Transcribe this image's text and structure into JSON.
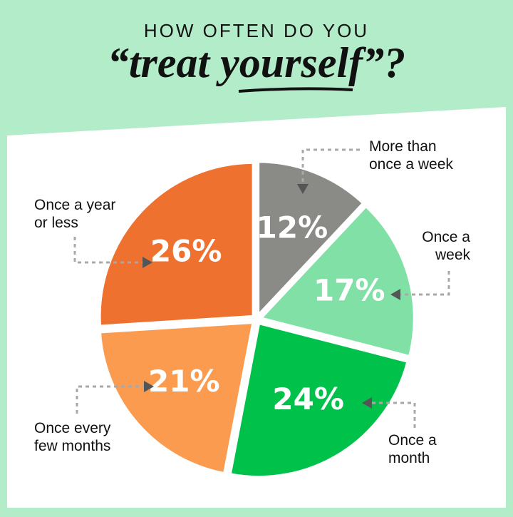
{
  "chart_data": {
    "type": "pie",
    "title": "HOW OFTEN DO YOU",
    "subtitle": "“treat yourself”?",
    "categories": [
      "More than once a week",
      "Once a week",
      "Once a month",
      "Once every few months",
      "Once a year or less"
    ],
    "values": [
      12,
      17,
      24,
      21,
      26
    ],
    "value_labels": [
      "12%",
      "17%",
      "24%",
      "21%",
      "26%"
    ],
    "colors": [
      "#8a8a87",
      "#80e0a6",
      "#00c24b",
      "#fb9b50",
      "#ef7130"
    ]
  }
}
